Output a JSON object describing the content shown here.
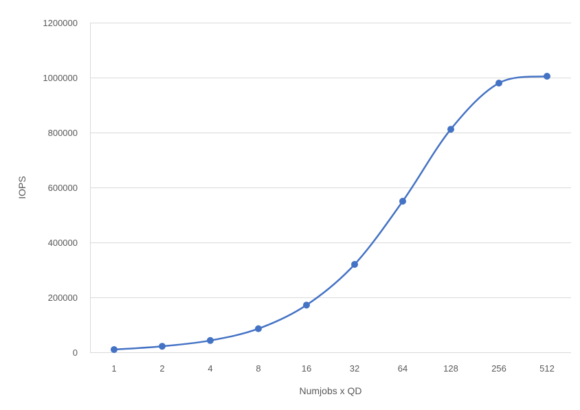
{
  "chart_data": {
    "type": "line",
    "title": "",
    "xlabel": "Numjobs x QD",
    "ylabel": "IOPS",
    "categories": [
      "1",
      "2",
      "4",
      "8",
      "16",
      "32",
      "64",
      "128",
      "256",
      "512"
    ],
    "series": [
      {
        "values": [
          10000,
          22000,
          43000,
          86000,
          172000,
          320000,
          550000,
          812000,
          980000,
          1005000
        ]
      }
    ],
    "y_ticks": [
      "0",
      "200000",
      "400000",
      "600000",
      "800000",
      "1000000",
      "1200000"
    ],
    "ylim": [
      0,
      1200000
    ],
    "grid": true,
    "legend": "none",
    "smooth": true,
    "colors": {
      "series": "#4472c4",
      "grid": "#d9d9d9",
      "text": "#595959"
    }
  }
}
